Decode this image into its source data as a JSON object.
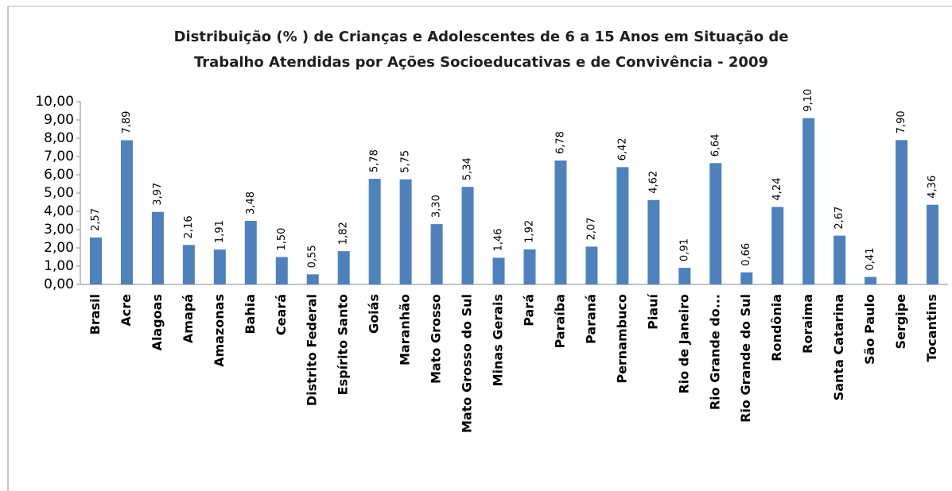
{
  "chart_data": {
    "type": "bar",
    "title": [
      "Distribuição (% ) de Crianças e Adolescentes de 6 a 15 Anos em Situação de",
      "Trabalho Atendidas por Ações Socioeducativas  e de Convivência  - 2009"
    ],
    "categories": [
      "Brasil",
      "Acre",
      "Alagoas",
      "Amapá",
      "Amazonas",
      "Bahia",
      "Ceará",
      "Distrito Federal",
      "Espírito Santo",
      "Goiás",
      "Maranhão",
      "Mato Grosso",
      "Mato Grosso do Sul",
      "Minas Gerais",
      "Pará",
      "Paraíba",
      "Paraná",
      "Pernambuco",
      "Piauí",
      "Rio de Janeiro",
      "Rio Grande do...",
      "Rio Grande do Sul",
      "Rondônia",
      "Roraima",
      "Santa Catarina",
      "São Paulo",
      "Sergipe",
      "Tocantins"
    ],
    "values": [
      2.57,
      7.89,
      3.97,
      2.16,
      1.91,
      3.48,
      1.5,
      0.55,
      1.82,
      5.78,
      5.75,
      3.3,
      5.34,
      1.46,
      1.92,
      6.78,
      2.07,
      6.42,
      4.62,
      0.91,
      6.64,
      0.66,
      4.24,
      9.1,
      2.67,
      0.41,
      7.9,
      4.36
    ],
    "value_labels": [
      "2,57",
      "7,89",
      "3,97",
      "2,16",
      "1,91",
      "3,48",
      "1,50",
      "0,55",
      "1,82",
      "5,78",
      "5,75",
      "3,30",
      "5,34",
      "1,46",
      "1,92",
      "6,78",
      "2,07",
      "6,42",
      "4,62",
      "0,91",
      "6,64",
      "0,66",
      "4,24",
      "9,10",
      "2,67",
      "0,41",
      "7,90",
      "4,36"
    ],
    "color": "#4f81bd",
    "ylim": [
      0,
      10
    ],
    "yticks": [
      {
        "value": 0,
        "label": "0,00"
      },
      {
        "value": 1,
        "label": "1,00"
      },
      {
        "value": 2,
        "label": "2,00"
      },
      {
        "value": 3,
        "label": "3,00"
      },
      {
        "value": 4,
        "label": "4,00"
      },
      {
        "value": 5,
        "label": "5,00"
      },
      {
        "value": 6,
        "label": "6,00"
      },
      {
        "value": 7,
        "label": "7,00"
      },
      {
        "value": 8,
        "label": "8,00"
      },
      {
        "value": 9,
        "label": "9,00"
      },
      {
        "value": 10,
        "label": "10,00"
      }
    ],
    "grid": false
  }
}
